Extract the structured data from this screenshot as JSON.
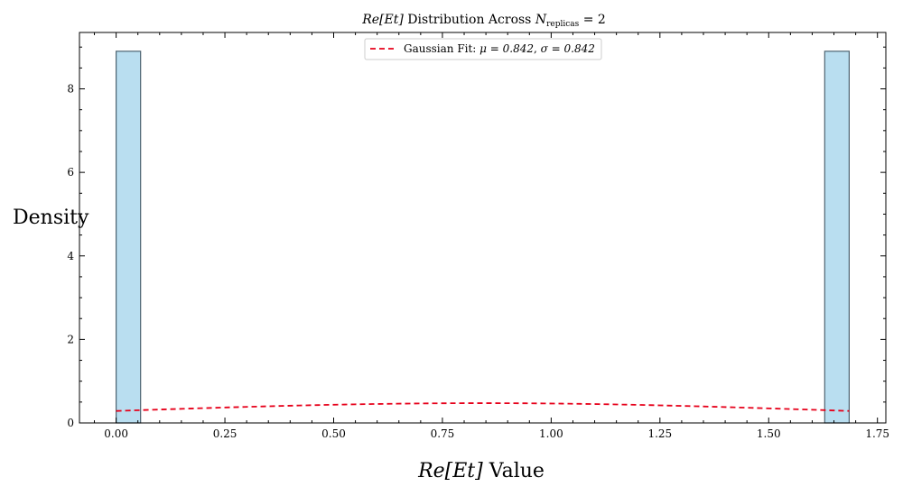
{
  "chart_data": {
    "type": "bar",
    "title_parts": {
      "var": "Re[Et]",
      "mid": " Distribution Across ",
      "n": "N",
      "sub": "replicas",
      "eq": " = 2"
    },
    "xlabel_parts": {
      "var": "Re[Et]",
      "rest": " Value"
    },
    "ylabel": "Density",
    "xlim": [
      -0.0843,
      1.7693
    ],
    "ylim": [
      0,
      9.35
    ],
    "xticks": [
      0.0,
      0.25,
      0.5,
      0.75,
      1.0,
      1.25,
      1.5,
      1.75
    ],
    "xtick_labels": [
      "0.00",
      "0.25",
      "0.50",
      "0.75",
      "1.00",
      "1.25",
      "1.50",
      "1.75"
    ],
    "yticks": [
      0,
      2,
      4,
      6,
      8
    ],
    "ytick_labels": [
      "0",
      "2",
      "4",
      "6",
      "8"
    ],
    "histogram": {
      "bins": [
        {
          "x0": 0.0,
          "x1": 0.0562,
          "density": 8.9
        },
        {
          "x0": 1.6288,
          "x1": 1.685,
          "density": 8.9
        }
      ],
      "color": "#b9def0",
      "edgecolor": "#4d6370"
    },
    "series": [
      {
        "name_prefix": "Gaussian Fit: ",
        "name_mu": "μ = 0.842",
        "name_sep": ", ",
        "name_sigma": "σ = 0.842",
        "type": "line",
        "style": "dashed",
        "color": "#e6001a",
        "mu": 0.842,
        "sigma": 0.842,
        "x_range": [
          0.0,
          1.685
        ]
      }
    ],
    "legend_position": "top-center",
    "grid": false
  }
}
